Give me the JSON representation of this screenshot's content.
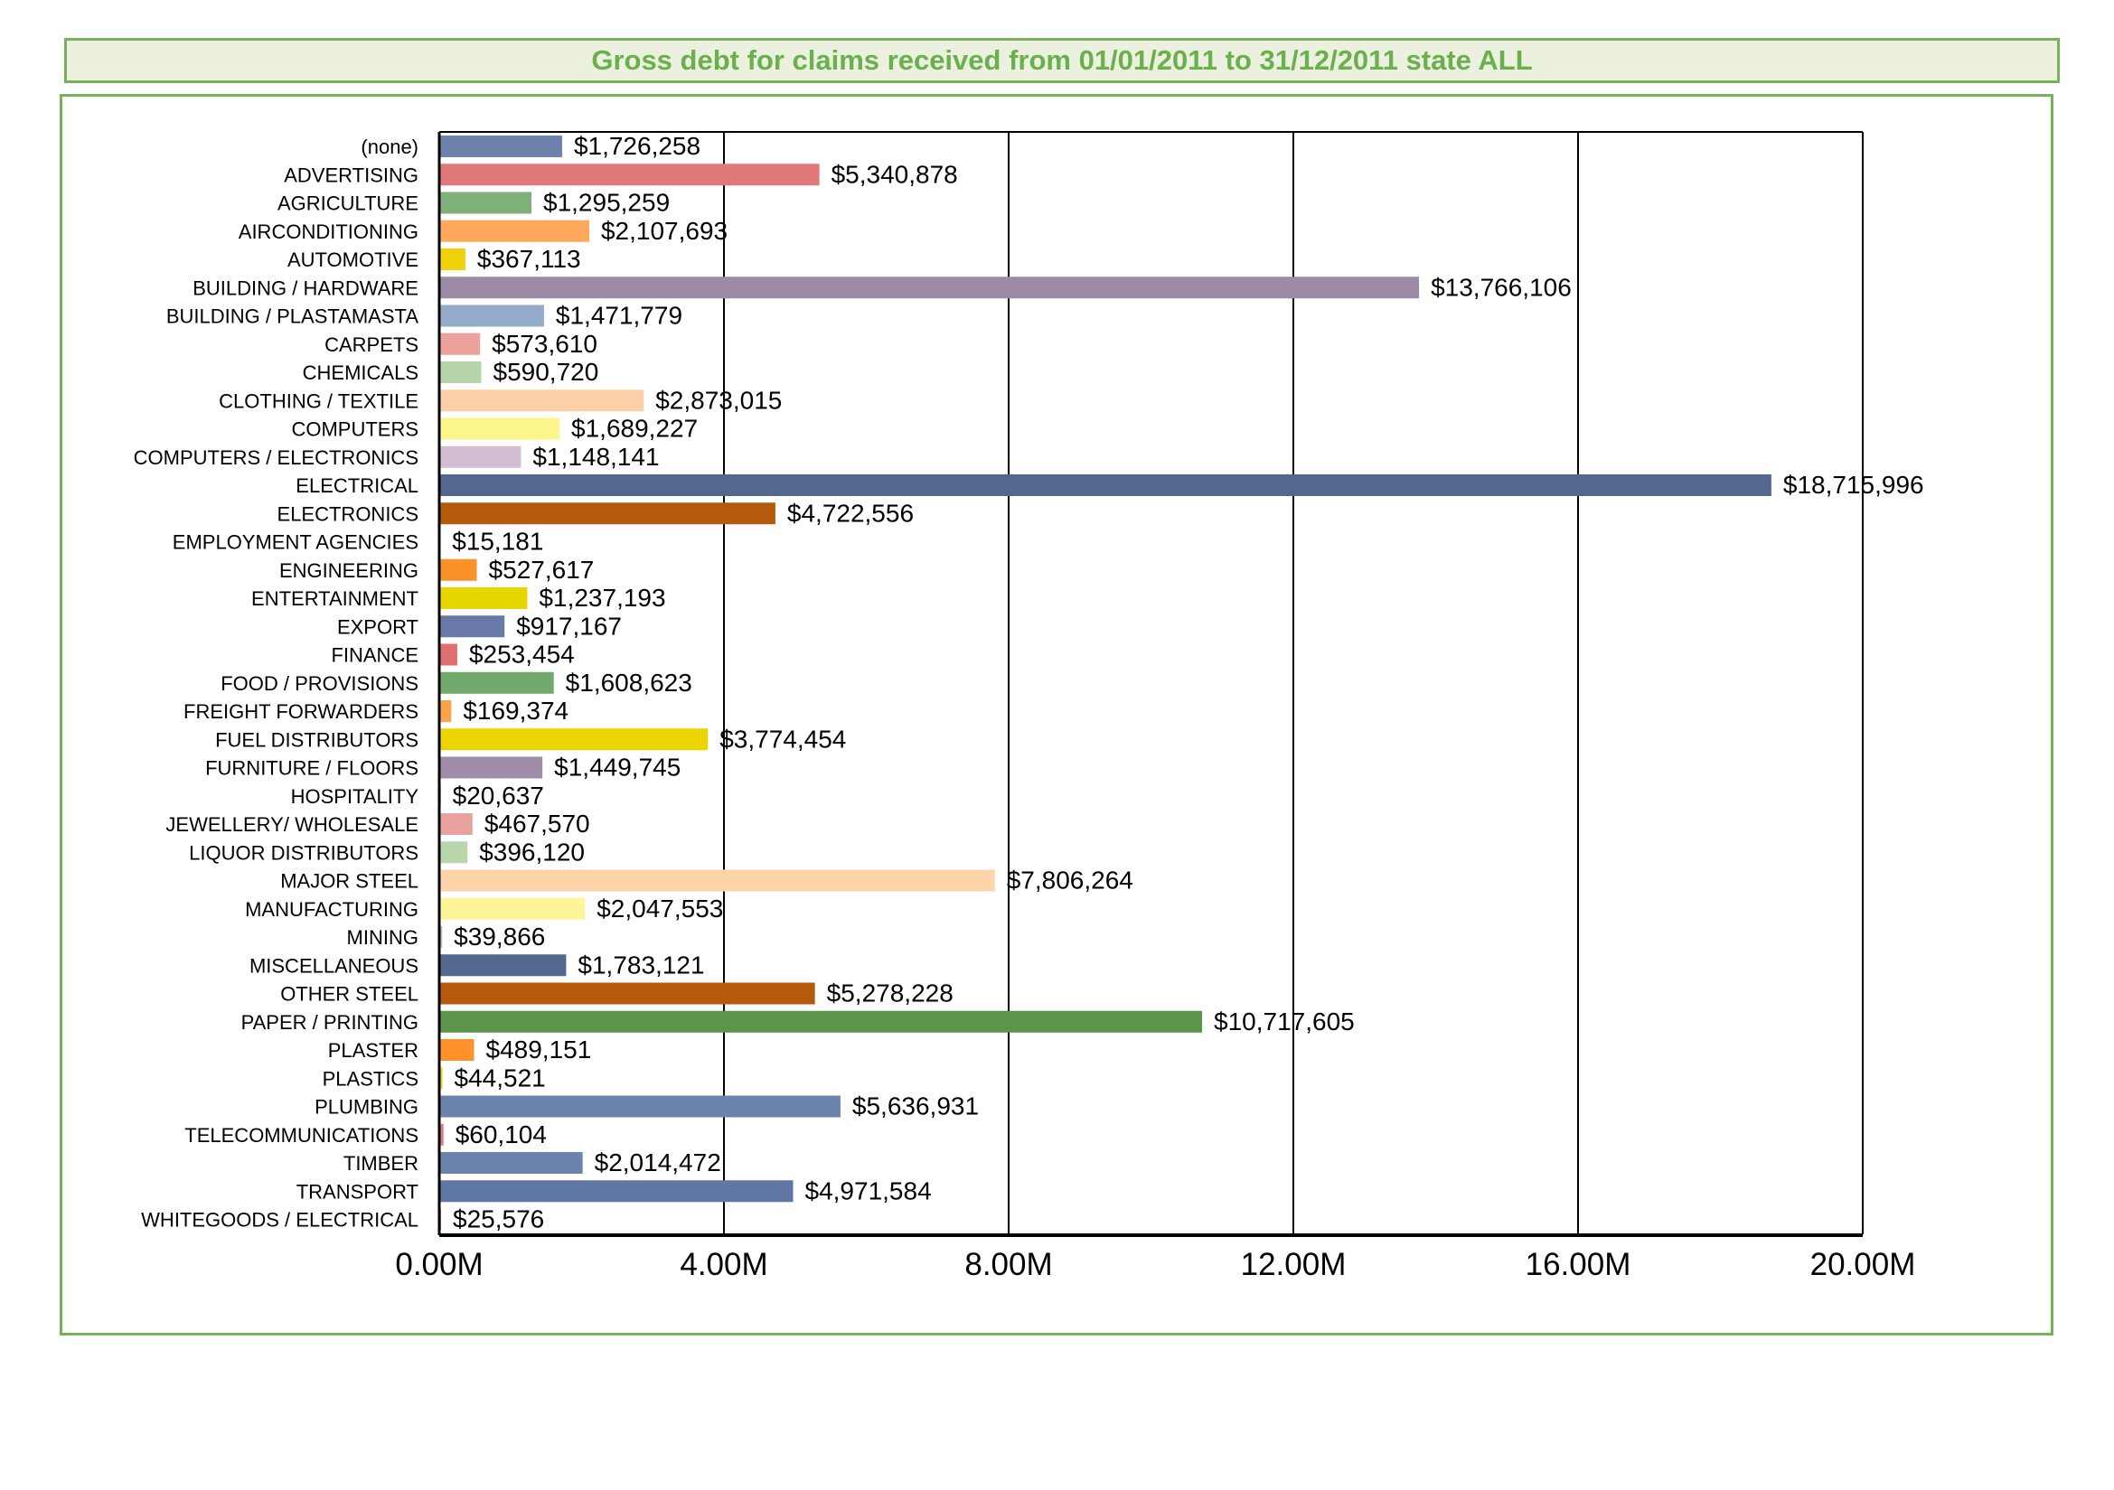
{
  "title": "Gross debt for claims received from 01/01/2011 to 31/12/2011 state ALL",
  "chart_data": {
    "type": "bar",
    "orientation": "horizontal",
    "title": "Gross debt for claims received from 01/01/2011 to 31/12/2011 state ALL",
    "xlabel": "",
    "ylabel": "",
    "xlim": [
      0,
      20000000
    ],
    "x_ticks": [
      0,
      4000000,
      8000000,
      12000000,
      16000000,
      20000000
    ],
    "x_tick_labels": [
      "0.00M",
      "4.00M",
      "8.00M",
      "12.00M",
      "16.00M",
      "20.00M"
    ],
    "grid": "vertical",
    "legend": "none",
    "categories": [
      "(none)",
      "ADVERTISING",
      "AGRICULTURE",
      "AIRCONDITIONING",
      "AUTOMOTIVE",
      "BUILDING / HARDWARE",
      "BUILDING / PLASTAMASTA",
      "CARPETS",
      "CHEMICALS",
      "CLOTHING / TEXTILE",
      "COMPUTERS",
      "COMPUTERS / ELECTRONICS",
      "ELECTRICAL",
      "ELECTRONICS",
      "EMPLOYMENT AGENCIES",
      "ENGINEERING",
      "ENTERTAINMENT",
      "EXPORT",
      "FINANCE",
      "FOOD / PROVISIONS",
      "FREIGHT FORWARDERS",
      "FUEL DISTRIBUTORS",
      "FURNITURE / FLOORS",
      "HOSPITALITY",
      "JEWELLERY/ WHOLESALE",
      "LIQUOR DISTRIBUTORS",
      "MAJOR STEEL",
      "MANUFACTURING",
      "MINING",
      "MISCELLANEOUS",
      "OTHER STEEL",
      "PAPER / PRINTING",
      "PLASTER",
      "PLASTICS",
      "PLUMBING",
      "TELECOMMUNICATIONS",
      "TIMBER",
      "TRANSPORT",
      "WHITEGOODS / ELECTRICAL"
    ],
    "values": [
      1726258,
      5340878,
      1295259,
      2107693,
      367113,
      13766106,
      1471779,
      573610,
      590720,
      2873015,
      1689227,
      1148141,
      18715996,
      4722556,
      15181,
      527617,
      1237193,
      917167,
      253454,
      1608623,
      169374,
      3774454,
      1449745,
      20637,
      467570,
      396120,
      7806264,
      2047553,
      39866,
      1783121,
      5278228,
      10717605,
      489151,
      44521,
      5636931,
      60104,
      2014472,
      4971584,
      25576
    ],
    "data_labels": [
      "$1,726,258",
      "$5,340,878",
      "$1,295,259",
      "$2,107,693",
      "$367,113",
      "$13,766,106",
      "$1,471,779",
      "$573,610",
      "$590,720",
      "$2,873,015",
      "$1,689,227",
      "$1,148,141",
      "$18,715,996",
      "$4,722,556",
      "$15,181",
      "$527,617",
      "$1,237,193",
      "$917,167",
      "$253,454",
      "$1,608,623",
      "$169,374",
      "$3,774,454",
      "$1,449,745",
      "$20,637",
      "$467,570",
      "$396,120",
      "$7,806,264",
      "$2,047,553",
      "$39,866",
      "$1,783,121",
      "$5,278,228",
      "$10,717,605",
      "$489,151",
      "$44,521",
      "$5,636,931",
      "$60,104",
      "$2,014,472",
      "$4,971,584",
      "$25,576"
    ],
    "colors": [
      "#6d83ab",
      "#e1787a",
      "#7fb079",
      "#fda85a",
      "#efd107",
      "#9d8aa7",
      "#95abcb",
      "#eda29e",
      "#b6d5ab",
      "#fdd1a7",
      "#fdf68a",
      "#d2bdd2",
      "#52688f",
      "#b45a0c",
      "#506488",
      "#fb9229",
      "#e6d600",
      "#6879a7",
      "#e0706f",
      "#72a96c",
      "#ffa248",
      "#ecd400",
      "#a08ca6",
      "#4f6690",
      "#e8a3a0",
      "#b9d6ac",
      "#fed4ab",
      "#fdf59a",
      "#c6b3c8",
      "#52688f",
      "#b55a0c",
      "#5a954b",
      "#fc9229",
      "#efd400",
      "#6c83ab",
      "#e07b7f",
      "#6c83ab",
      "#6177a3",
      "#e07b7f"
    ]
  }
}
